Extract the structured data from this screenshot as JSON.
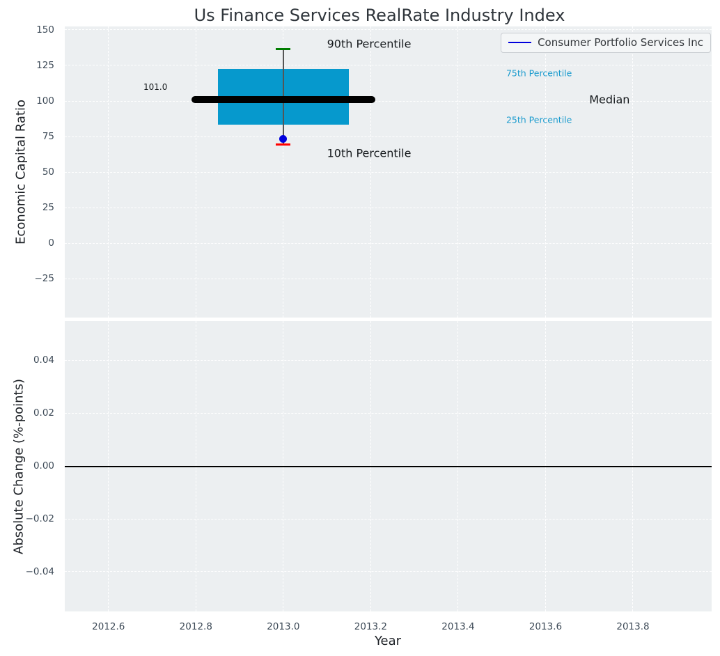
{
  "colors": {
    "figure_bg": "#ffffff",
    "axes_bg": "#eceff1",
    "grid": "#ffffff",
    "tick_text": "#3d4a57",
    "title_text": "#2f353b",
    "box_fill": "#0699cd",
    "median_line": "#000000",
    "whisker": "#555555",
    "p90_cap": "#007d00",
    "p10_cap": "#ff0000",
    "company_dot": "#0000dd",
    "legend_line": "#0000dd",
    "percentile_text": "#1a9bce",
    "zero_line": "#000000"
  },
  "legend": {
    "label": "Consumer Portfolio Services Inc",
    "position": "upper right"
  },
  "chart_data": [
    {
      "type": "box",
      "title": "Us Finance Services RealRate Industry Index",
      "xlabel": "Year",
      "ylabel": "Economic Capital Ratio",
      "xlim": [
        2012.5,
        2013.98
      ],
      "ylim": [
        -52,
        152.5
      ],
      "grid": true,
      "legend_entries": [
        "Consumer Portfolio Services Inc"
      ],
      "xticks": [
        2012.6,
        2012.8,
        2013.0,
        2013.2,
        2013.4,
        2013.6,
        2013.8
      ],
      "yticks": [
        150,
        125,
        100,
        75,
        50,
        25,
        0,
        -25
      ],
      "ytick_labels": [
        "150",
        "125",
        "100",
        "75",
        "50",
        "25",
        "0",
        "−25"
      ],
      "boxes": [
        {
          "x": 2013.0,
          "p10": 69.5,
          "p25": 83.5,
          "median": 101.0,
          "p75": 122.5,
          "p90": 136.5,
          "median_value_label": "101.0",
          "box_width": 0.3,
          "median_line_width": 0.42,
          "company_point": {
            "name": "Consumer Portfolio Services Inc",
            "x": 2013.0,
            "value": 73.5
          }
        }
      ],
      "annotations": [
        {
          "text": "90th Percentile",
          "x": 2013.1,
          "y": 140.5,
          "size": 16,
          "color": "#15191c"
        },
        {
          "text": "10th Percentile",
          "x": 2013.1,
          "y": 63.5,
          "size": 16,
          "color": "#15191c"
        },
        {
          "text": "101.0",
          "x": 2012.68,
          "y": 110.0,
          "size": 12,
          "color": "#15191c"
        },
        {
          "text": "75th Percentile",
          "x": 2013.51,
          "y": 119.5,
          "size": 12.5,
          "color": "#1a9bce"
        },
        {
          "text": "25th Percentile",
          "x": 2013.51,
          "y": 87.0,
          "size": 12.5,
          "color": "#1a9bce"
        },
        {
          "text": "Median",
          "x": 2013.7,
          "y": 101.0,
          "size": 16,
          "color": "#15191c"
        }
      ]
    },
    {
      "type": "line",
      "xlabel": "Year",
      "ylabel": "Absolute Change (%-points)",
      "xlim": [
        2012.5,
        2013.98
      ],
      "ylim": [
        -0.055,
        0.055
      ],
      "grid": true,
      "xticks": [
        2012.6,
        2012.8,
        2013.0,
        2013.2,
        2013.4,
        2013.6,
        2013.8
      ],
      "xtick_labels": [
        "2012.6",
        "2012.8",
        "2013.0",
        "2013.2",
        "2013.4",
        "2013.6",
        "2013.8"
      ],
      "yticks": [
        0.04,
        0.02,
        0.0,
        -0.02,
        -0.04
      ],
      "ytick_labels": [
        "0.04",
        "0.02",
        "0.00",
        "−0.02",
        "−0.04"
      ],
      "series": [],
      "reference_line_y": 0.0
    }
  ]
}
